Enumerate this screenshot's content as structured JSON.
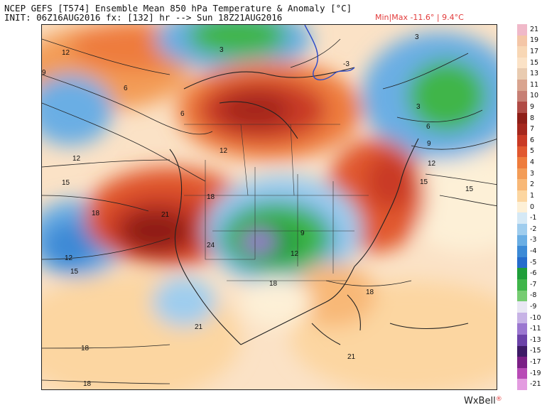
{
  "header": {
    "line1": "NCEP GEFS [T574] Ensemble Mean 850 hPa Temperature & Anomaly [°C]",
    "line2": "INIT: 06Z16AUG2016 fx: [132] hr --> Sun 18Z21AUG2016",
    "minmax": "Min|Max -11.6° | 9.4°C"
  },
  "brand": {
    "text": "WxBell",
    "mark": "®"
  },
  "colorbar": {
    "labels": [
      "21",
      "19",
      "17",
      "15",
      "13",
      "11",
      "10",
      "9",
      "8",
      "7",
      "6",
      "5",
      "4",
      "3",
      "2",
      "1",
      "0",
      "-1",
      "-2",
      "-3",
      "-4",
      "-5",
      "-6",
      "-7",
      "-8",
      "-9",
      "-10",
      "-11",
      "-13",
      "-15",
      "-17",
      "-19",
      "-21"
    ],
    "colors": [
      "#f0b9c9",
      "#f4c6a7",
      "#f8d7b5",
      "#fbe2c6",
      "#e9cbb0",
      "#d9a48f",
      "#c77f74",
      "#b04b45",
      "#8f1e17",
      "#a5271d",
      "#c93a25",
      "#e1582f",
      "#ee7c3c",
      "#f39c57",
      "#f8b877",
      "#fcd6a1",
      "#fdf0d7",
      "#d5e9f6",
      "#9fcdee",
      "#6aaee4",
      "#3c8ad6",
      "#256ccc",
      "#1f9e3a",
      "#3fb54a",
      "#76cc72",
      "#e9e7f4",
      "#c7b3e6",
      "#9b77d0",
      "#6b42a8",
      "#3d1a66",
      "#7a1f85",
      "#b84bb6",
      "#e39ce0"
    ]
  },
  "map_labels": [
    {
      "text": "12"
    },
    {
      "text": "9"
    },
    {
      "text": "6"
    },
    {
      "text": "6"
    },
    {
      "text": "3"
    },
    {
      "text": "3"
    },
    {
      "text": "6"
    },
    {
      "text": "9"
    },
    {
      "text": "12"
    },
    {
      "text": "15"
    },
    {
      "text": "15"
    },
    {
      "text": "18"
    },
    {
      "text": "18"
    },
    {
      "text": "12"
    },
    {
      "text": "12"
    },
    {
      "text": "15"
    },
    {
      "text": "21"
    },
    {
      "text": "24"
    },
    {
      "text": "12"
    },
    {
      "text": "9"
    },
    {
      "text": "12"
    },
    {
      "text": "18"
    },
    {
      "text": "18"
    },
    {
      "text": "18"
    },
    {
      "text": "18"
    },
    {
      "text": "21"
    },
    {
      "text": "21"
    },
    {
      "text": "15"
    },
    {
      "text": "-3"
    },
    {
      "text": "3"
    }
  ]
}
